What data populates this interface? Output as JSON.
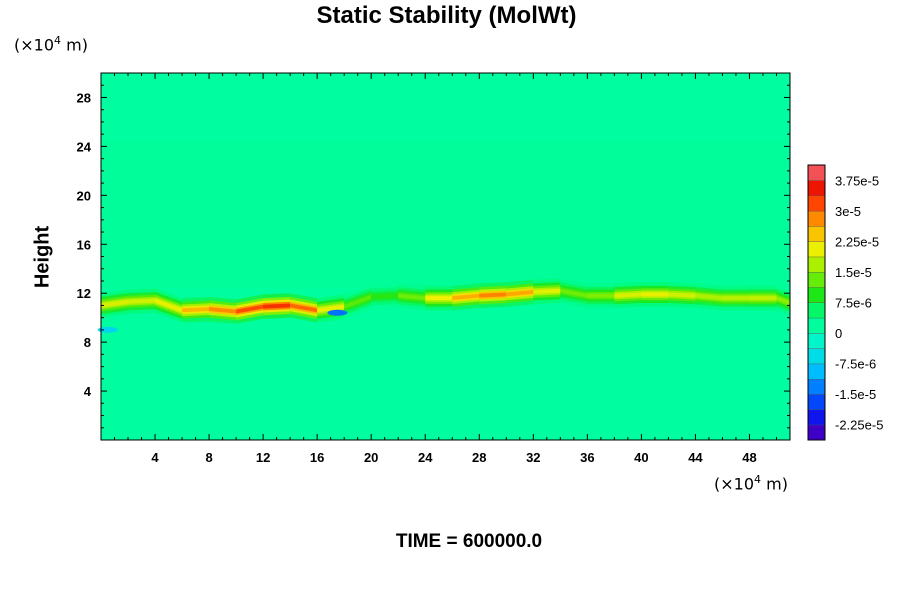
{
  "chart_data": {
    "type": "heatmap",
    "title": "Static Stability (MolWt)",
    "xlabel": "",
    "ylabel": "Height",
    "x_unit_prefix": "(×10",
    "x_unit_exp": "4",
    "x_unit_suffix": " m)",
    "y_unit_prefix": "(×10",
    "y_unit_exp": "4",
    "y_unit_suffix": " m)",
    "xlim": [
      0,
      51
    ],
    "ylim": [
      0,
      30
    ],
    "x_ticks": [
      4,
      8,
      12,
      16,
      20,
      24,
      28,
      32,
      36,
      40,
      44,
      48
    ],
    "y_ticks": [
      4,
      8,
      12,
      16,
      20,
      24,
      28
    ],
    "background_value": 1.8e-06,
    "colorbar": {
      "min": -2.625e-05,
      "max": 4.125e-05,
      "step": 3.75e-06,
      "labels": [
        "3.75e-5",
        "3e-5",
        "2.25e-5",
        "1.5e-5",
        "7.5e-6",
        "0",
        "-7.5e-6",
        "-1.5e-5",
        "-2.25e-5"
      ],
      "label_values": [
        3.75e-05,
        3e-05,
        2.25e-05,
        1.5e-05,
        7.5e-06,
        0,
        -7.5e-06,
        -1.5e-05,
        -2.25e-05
      ]
    },
    "tropopause_band": {
      "x": [
        0,
        2,
        4,
        6,
        8,
        10,
        12,
        14,
        16,
        18,
        20,
        22,
        24,
        26,
        28,
        30,
        32,
        34,
        36,
        38,
        40,
        42,
        44,
        46,
        48,
        50,
        51
      ],
      "height": [
        11.0,
        11.3,
        11.4,
        10.6,
        10.7,
        10.5,
        10.9,
        11.0,
        10.6,
        10.9,
        11.7,
        11.8,
        11.6,
        11.6,
        11.8,
        11.9,
        12.1,
        12.2,
        11.8,
        11.8,
        11.9,
        11.9,
        11.8,
        11.6,
        11.6,
        11.6,
        11.2
      ],
      "peak_value": [
        1.8e-05,
        2.1e-05,
        1.7e-05,
        2.4e-05,
        2.7e-05,
        2.9e-05,
        3.4e-05,
        3.3e-05,
        2.7e-05,
        1.4e-05,
        1.1e-05,
        9e-06,
        1.8e-05,
        2.4e-05,
        2.8e-05,
        2.9e-05,
        2.4e-05,
        1.6e-05,
        1.1e-05,
        1.8e-05,
        2.1e-05,
        2e-05,
        1.8e-05,
        1.6e-05,
        1.9e-05,
        1.7e-05,
        1.3e-05
      ]
    },
    "negative_spots": [
      {
        "x": 17.5,
        "height": 10.4,
        "value": -1.4e-05
      },
      {
        "x": 0.5,
        "height": 9.0,
        "value": -7e-06
      }
    ]
  },
  "footer": {
    "time_label": "TIME = 600000.0"
  }
}
